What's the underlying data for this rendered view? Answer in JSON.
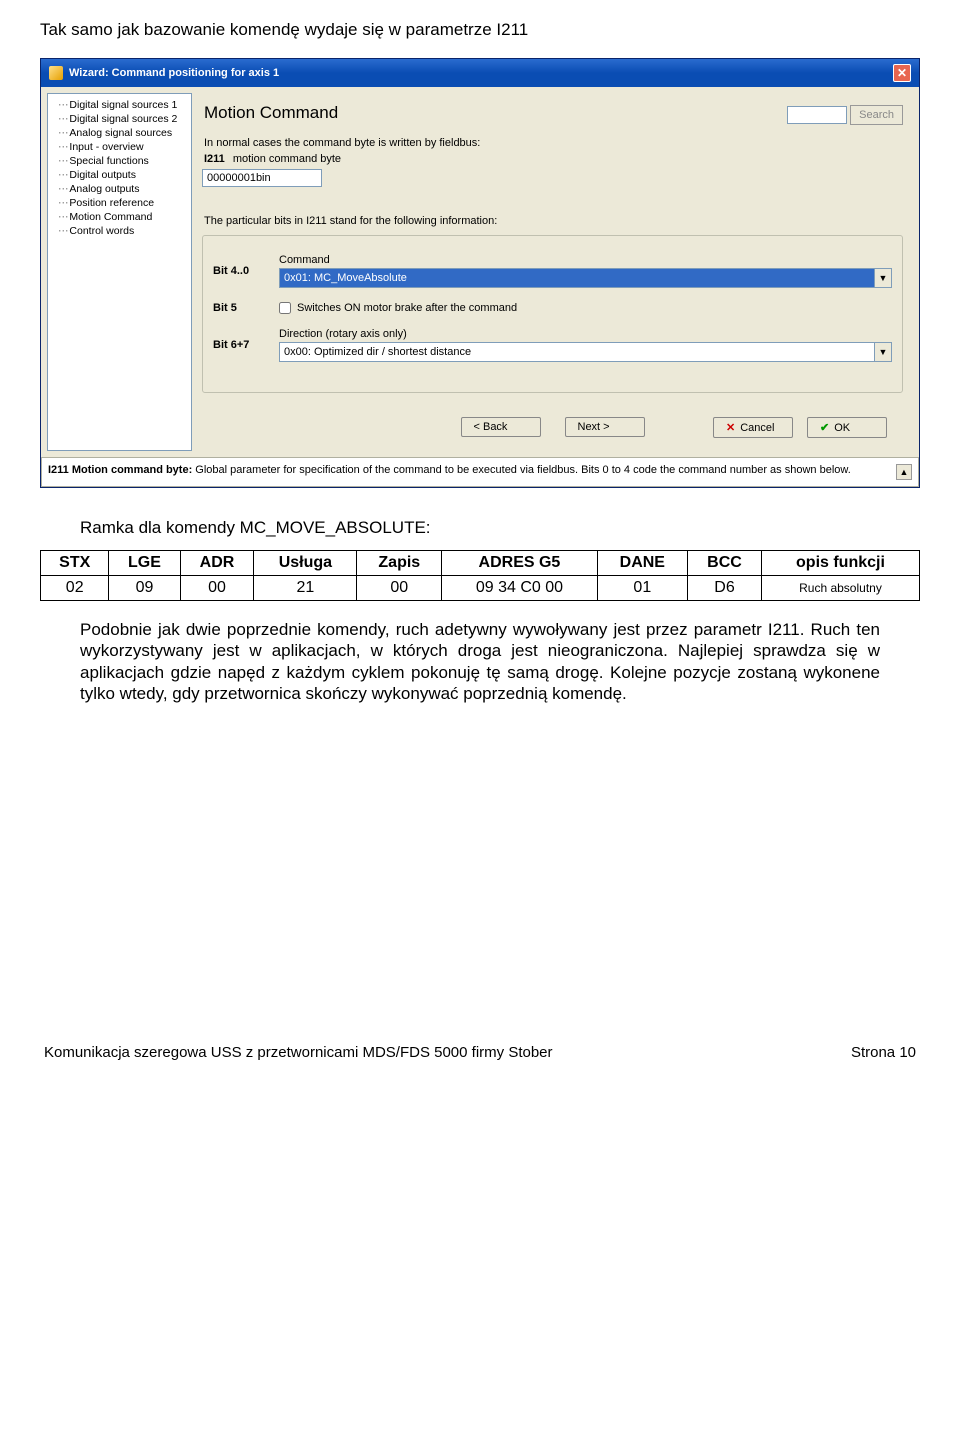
{
  "intro_text": "Tak samo jak bazowanie komendę wydaje się w parametrze I211",
  "window": {
    "title": "Wizard: Command positioning for axis 1",
    "close": "✕",
    "sidebar_items": [
      "Digital signal sources 1",
      "Digital signal sources 2",
      "Analog signal sources",
      "Input - overview",
      "Special functions",
      "Digital outputs",
      "Analog outputs",
      "Position reference",
      "Motion Command",
      "Control words"
    ],
    "heading": "Motion Command",
    "search_btn": "Search",
    "line1": "In normal cases the command byte is written by fieldbus:",
    "param_id": "I211",
    "param_name": "motion command byte",
    "param_value": "00000001bin",
    "bits_text": "The particular bits in I211 stand for the following information:",
    "bit40_label": "Bit 4..0",
    "command_label": "Command",
    "command_value": "0x01: MC_MoveAbsolute",
    "bit5_label": "Bit 5",
    "bit5_text": "Switches ON motor brake after the command",
    "bit67_label": "Bit 6+7",
    "direction_label": "Direction (rotary axis only)",
    "direction_value": "0x00: Optimized dir / shortest distance",
    "btn_back": "< Back",
    "btn_next": "Next >",
    "btn_cancel": "Cancel",
    "btn_ok": "OK",
    "footer_bold": "I211  Motion command byte:",
    "footer_text": " Global parameter for specification of the command to be executed via fieldbus. Bits 0 to 4 code the command number as shown below."
  },
  "caption": "Ramka dla komendy MC_MOVE_ABSOLUTE:",
  "table": {
    "headers": [
      "STX",
      "LGE",
      "ADR",
      "Usługa",
      "Zapis",
      "ADRES G5",
      "DANE",
      "BCC",
      "opis funkcji"
    ],
    "row": [
      "02",
      "09",
      "00",
      "21",
      "00",
      "09 34 C0 00",
      "01",
      "D6",
      "Ruch absolutny"
    ]
  },
  "para": "Podobnie jak dwie poprzednie komendy, ruch adetywny wywoływany jest przez parametr I211. Ruch ten wykorzystywany jest w aplikacjach, w których droga jest nieograniczona. Najlepiej sprawdza się w aplikacjach gdzie napęd z każdym cyklem pokonuję tę samą drogę. Kolejne pozycje zostaną wykonene tylko wtedy, gdy przetwornica skończy wykonywać poprzednią komendę.",
  "footer_left": "Komunikacja szeregowa USS z przetwornicami MDS/FDS 5000 firmy Stober",
  "footer_right": "Strona 10"
}
